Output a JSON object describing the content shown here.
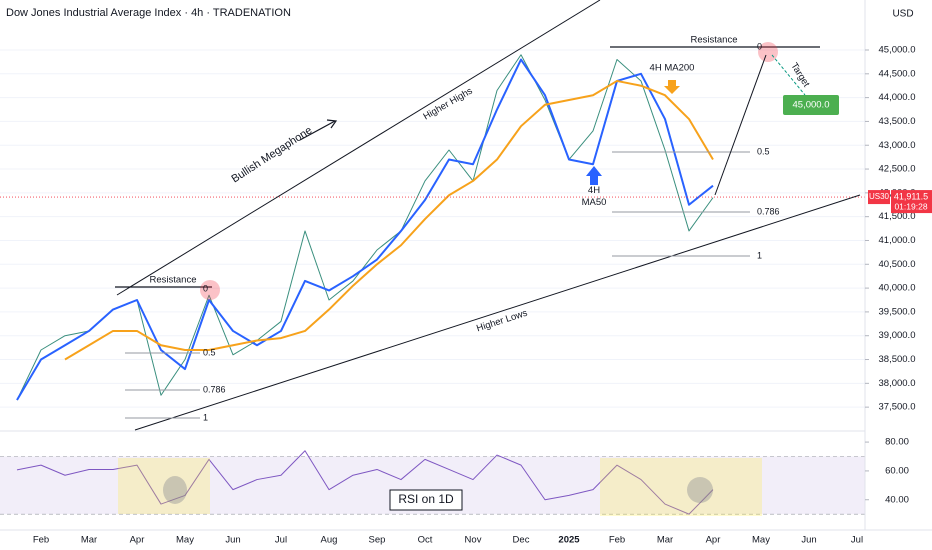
{
  "chart_data": [
    {
      "type": "line",
      "title": "Dow Jones Industrial Average Index · 4h · TRADENATION",
      "currency": "USD",
      "symbol": "US30",
      "last_price": {
        "value": 41911.5,
        "label": "41,911.5"
      },
      "countdown": "01:19:28",
      "categories": [
        null,
        "Feb",
        null,
        "Mar",
        null,
        "Apr",
        null,
        "May",
        null,
        "Jun",
        null,
        "Jul",
        null,
        "Aug",
        null,
        "Sep",
        null,
        "Oct",
        null,
        "Nov",
        null,
        "Dec",
        null,
        "2025",
        null,
        "Feb",
        null,
        "Mar",
        null,
        "Apr",
        null,
        "May",
        null,
        "Jun",
        null,
        "Jul"
      ],
      "series": [
        {
          "color": "#3a8f7e",
          "values": [
            37650,
            38700,
            39000,
            39100,
            39550,
            39750,
            37750,
            38500,
            39850,
            38600,
            38900,
            39300,
            41200,
            39750,
            40150,
            40800,
            41200,
            42250,
            42900,
            42250,
            44150,
            44900,
            43950,
            42700,
            43300,
            44800,
            44350,
            42900,
            41200,
            41900,
            null,
            null,
            null,
            null,
            null,
            null
          ]
        },
        {
          "name": "4H MA50",
          "color": "#2962ff",
          "values": [
            37650,
            38500,
            38800,
            39100,
            39550,
            39750,
            38700,
            38300,
            39750,
            39100,
            38800,
            39100,
            40150,
            39950,
            40250,
            40600,
            41200,
            41850,
            42700,
            42600,
            43750,
            44800,
            44050,
            42700,
            42600,
            44350,
            44500,
            43550,
            41750,
            42150,
            null,
            null,
            null,
            null,
            null,
            null
          ]
        },
        {
          "name": "4H MA200",
          "color": "#f7a21b",
          "values": [
            null,
            null,
            38500,
            38800,
            39100,
            39100,
            38800,
            38700,
            38700,
            38800,
            38900,
            38950,
            39100,
            39550,
            40050,
            40500,
            40900,
            41450,
            41950,
            42250,
            42700,
            43400,
            43850,
            43950,
            44050,
            44350,
            44250,
            44050,
            43550,
            42700,
            null,
            null,
            null,
            null,
            null,
            null
          ]
        }
      ],
      "ylim": [
        37020,
        46050
      ],
      "yticks": [
        {
          "value": 37500,
          "label": "37,500.0"
        },
        {
          "value": 38000,
          "label": "38,000.0"
        },
        {
          "value": 38500,
          "label": "38,500.0"
        },
        {
          "value": 39000,
          "label": "39,000.0"
        },
        {
          "value": 39500,
          "label": "39,500.0"
        },
        {
          "value": 40000,
          "label": "40,000.0"
        },
        {
          "value": 40500,
          "label": "40,500.0"
        },
        {
          "value": 41000,
          "label": "41,000.0"
        },
        {
          "value": 41500,
          "label": "41,500.0"
        },
        {
          "value": 42000,
          "label": "42,000.0"
        },
        {
          "value": 42500,
          "label": "42,500.0"
        },
        {
          "value": 43000,
          "label": "43,000.0"
        },
        {
          "value": 43500,
          "label": "43,500.0"
        },
        {
          "value": 44000,
          "label": "44,000.0"
        },
        {
          "value": 44500,
          "label": "44,500.0"
        },
        {
          "value": 45000,
          "label": "45,000.0"
        }
      ],
      "grid": true,
      "fib_levels": [
        0,
        0.5,
        0.786,
        1
      ],
      "target": {
        "value": 45000,
        "label": "45,000.0"
      },
      "annotations": [
        "Bullish Megaphone",
        "Higher Highs",
        "Higher Lows",
        "Resistance",
        "Resistance",
        "Target"
      ]
    },
    {
      "type": "line",
      "title": "RSI on 1D",
      "series": [
        {
          "color": "#7e57c2",
          "values": [
            60.7,
            64,
            57,
            61,
            61,
            64,
            37,
            43,
            68,
            47,
            54,
            57,
            74,
            47,
            57,
            61,
            54,
            68,
            61,
            54,
            71,
            64,
            40,
            43,
            47,
            64,
            54,
            37,
            30,
            47,
            null,
            null,
            null,
            null,
            null,
            null
          ]
        }
      ],
      "ylim": [
        19,
        87
      ],
      "yticks": [
        {
          "value": 40,
          "label": "40.00"
        },
        {
          "value": 60,
          "label": "60.00"
        },
        {
          "value": 80,
          "label": "80.00"
        }
      ],
      "band": [
        30,
        70
      ]
    }
  ]
}
